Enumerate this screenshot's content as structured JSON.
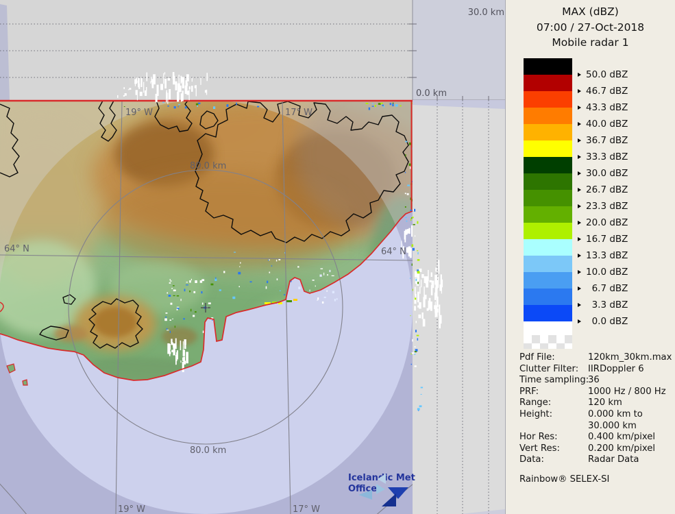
{
  "sidebar": {
    "title": "MAX (dBZ)",
    "datetime": "07:00 / 27-Oct-2018",
    "radar": "Mobile radar 1",
    "scale_bands": [
      {
        "color": "#000000",
        "label": "50.0 dBZ"
      },
      {
        "color": "#b20000",
        "label": "46.7 dBZ"
      },
      {
        "color": "#fb3f00",
        "label": "43.3 dBZ"
      },
      {
        "color": "#ff7c00",
        "label": "40.0 dBZ"
      },
      {
        "color": "#ffb200",
        "label": "36.7 dBZ"
      },
      {
        "color": "#ffff00",
        "label": "33.3 dBZ"
      },
      {
        "color": "#003f00",
        "label": "30.0 dBZ"
      },
      {
        "color": "#2d7500",
        "label": "26.7 dBZ"
      },
      {
        "color": "#459100",
        "label": "23.3 dBZ"
      },
      {
        "color": "#63b000",
        "label": "20.0 dBZ"
      },
      {
        "color": "#aef000",
        "label": "16.7 dBZ"
      },
      {
        "color": "#aaffff",
        "label": "13.3 dBZ"
      },
      {
        "color": "#7cc8f8",
        "label": "10.0 dBZ"
      },
      {
        "color": "#4a9ef2",
        "label": "  6.7 dBZ"
      },
      {
        "color": "#2b79f0",
        "label": "  3.3 dBZ"
      },
      {
        "color": "#0b49f7",
        "label": "  0.0 dBZ"
      }
    ],
    "metadata": [
      {
        "label": "Pdf File:",
        "value": "120km_30km.max"
      },
      {
        "label": "Clutter Filter:",
        "value": "IIRDoppler 6"
      },
      {
        "label": "Time sampling:",
        "value": "36"
      },
      {
        "label": "PRF:",
        "value": "1000 Hz / 800 Hz"
      },
      {
        "label": "Range:",
        "value": "120 km"
      },
      {
        "label": "Height:",
        "value": "0.000 km to"
      },
      {
        "label": "",
        "value": "30.000 km"
      },
      {
        "label": "Hor Res:",
        "value": "0.400 km/pixel"
      },
      {
        "label": "Vert Res:",
        "value": "0.200 km/pixel"
      },
      {
        "label": "Data:",
        "value": "Radar Data"
      }
    ],
    "vendor": "Rainbow® SELEX-SI"
  },
  "map": {
    "range_ring_label": "80.0 km",
    "lat_label": "64° N",
    "lon_west_label": "19° W",
    "lon_east_label": "17° W",
    "height_top_label": "30.0 km",
    "height_bottom_label": "0.0 km",
    "logo": {
      "line1": "Icelandic Met",
      "line2": "Office"
    }
  },
  "colors": {
    "boundary_red": "#d92b2b",
    "sea_in_range": "#cdd1ed",
    "sea_out_range": "#b2b4d5",
    "panel_bg": "#f0ede4"
  }
}
